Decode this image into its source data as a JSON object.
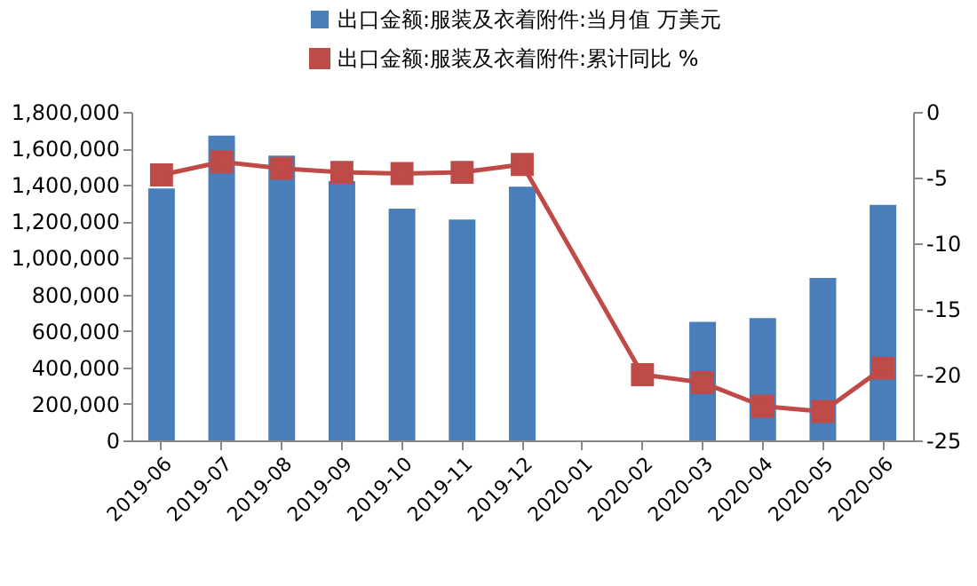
{
  "chart_data": {
    "type": "bar",
    "categories": [
      "2019-06",
      "2019-07",
      "2019-08",
      "2019-09",
      "2019-10",
      "2019-11",
      "2019-12",
      "2020-01",
      "2020-02",
      "2020-03",
      "2020-04",
      "2020-05",
      "2020-06"
    ],
    "series": [
      {
        "name": "出口金额:服装及衣着附件:当月值 万美元",
        "color": "#4a7ebb",
        "values": [
          1380000,
          1670000,
          1560000,
          1420000,
          1270000,
          1210000,
          1390000,
          null,
          null,
          650000,
          670000,
          890000,
          1290000
        ]
      },
      {
        "name": "出口金额:服装及衣着附件:累计同比 %",
        "type": "line",
        "axis": "y2",
        "color": "#be4b48",
        "marker": "square",
        "values": [
          -4.8,
          -3.8,
          -4.3,
          -4.6,
          -4.7,
          -4.6,
          -4.0,
          null,
          -20.0,
          -20.6,
          -22.4,
          -22.8,
          -19.5
        ]
      }
    ],
    "ylim": [
      0,
      1800000
    ],
    "yticks": [
      0,
      {
        "value": 200000,
        "label": "200,000"
      },
      {
        "value": 400000,
        "label": "400,000"
      },
      {
        "value": 600000,
        "label": "600,000"
      },
      {
        "value": 800000,
        "label": "800,000"
      },
      {
        "value": 1000000,
        "label": "1,000,000"
      },
      {
        "value": 1200000,
        "label": "1,200,000"
      },
      {
        "value": 1400000,
        "label": "1,400,000"
      },
      {
        "value": 1600000,
        "label": "1,600,000"
      },
      {
        "value": 1800000,
        "label": "1,800,000"
      }
    ],
    "y2lim": [
      -25,
      0
    ],
    "y2ticks": [
      -25,
      -20,
      -15,
      -10,
      -5,
      0
    ],
    "grid": false,
    "legend": "top"
  }
}
